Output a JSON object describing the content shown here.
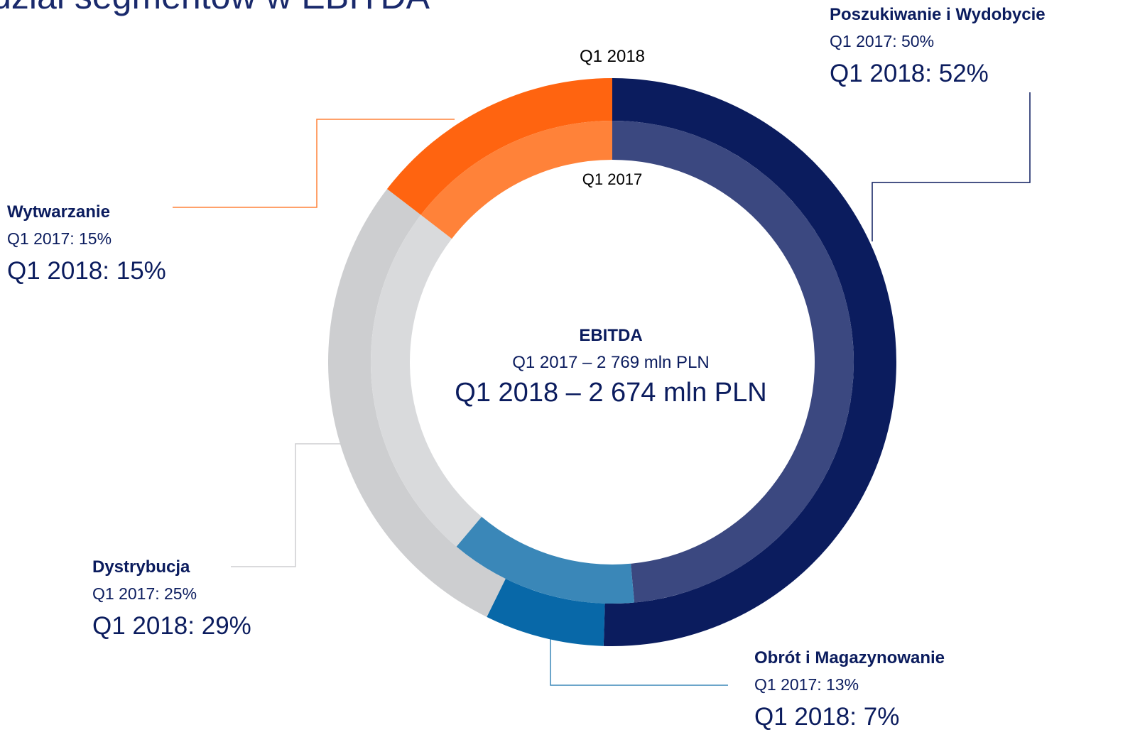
{
  "chart_data": {
    "type": "donut",
    "title": "Udział segmentów w EBITDA",
    "categories": [
      "Poszukiwanie i Wydobycie",
      "Obrót i Magazynowanie",
      "Dystrybucja",
      "Wytwarzanie"
    ],
    "series": [
      {
        "name": "Q1 2018",
        "colors": [
          "#0b1c5e",
          "#0868a8",
          "#cdced0",
          "#ff6410"
        ],
        "values": [
          52,
          7,
          29,
          15
        ],
        "value_labels": [
          "Q1 2018: 52%",
          "Q1 2018: 7%",
          "Q1 2018: 29%",
          "Q1 2018: 15%"
        ]
      },
      {
        "name": "Q1 2017",
        "colors": [
          "#3b4880",
          "#3a87b8",
          "#d9dadc",
          "#ff8239"
        ],
        "values": [
          50,
          13,
          25,
          15
        ],
        "value_labels": [
          "Q1 2017: 50%",
          "Q1 2017: 13%",
          "Q1 2017: 25%",
          "Q1 2017: 15%"
        ]
      }
    ],
    "center": {
      "title": "EBITDA",
      "lines": [
        "Q1 2017 – 2 769 mln PLN",
        "Q1 2018 – 2 674 mln PLN"
      ]
    }
  }
}
